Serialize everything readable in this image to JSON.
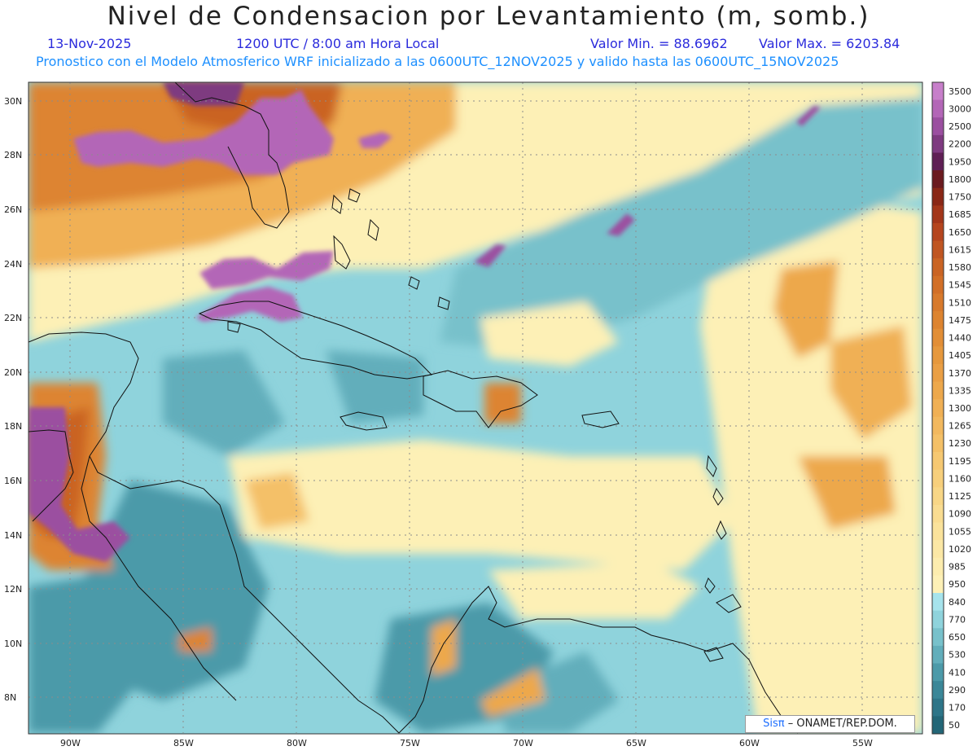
{
  "title": "Nivel de Condensacion por Levantamiento (m, somb.)",
  "date": "13-Nov-2025",
  "time": "1200 UTC / 8:00 am Hora Local",
  "min_label": "Valor Min. = 88.6962",
  "max_label": "Valor Max. = 6203.84",
  "forecast": "Pronostico con el Modelo Atmosferico WRF inicializado a las 0600UTC_12NOV2025 y valido hasta las  0600UTC_15NOV2025",
  "credit": {
    "brand": "Sisπ",
    "org": "– ONAMET/REP.DOM."
  },
  "lat_labels": [
    "30N",
    "28N",
    "26N",
    "24N",
    "22N",
    "20N",
    "18N",
    "16N",
    "14N",
    "12N",
    "10N",
    "8N"
  ],
  "lon_labels": [
    "90W",
    "85W",
    "80W",
    "75W",
    "70W",
    "65W",
    "60W",
    "55W"
  ],
  "colorbar": {
    "labels": [
      "3500",
      "3000",
      "2500",
      "2200",
      "1950",
      "1800",
      "1750",
      "1685",
      "1650",
      "1615",
      "1580",
      "1545",
      "1510",
      "1475",
      "1440",
      "1405",
      "1370",
      "1335",
      "1300",
      "1265",
      "1230",
      "1195",
      "1160",
      "1125",
      "1090",
      "1055",
      "1020",
      "985",
      "950",
      "840",
      "770",
      "650",
      "530",
      "410",
      "290",
      "170",
      "50"
    ],
    "colors": [
      "#c77fca",
      "#b366b7",
      "#9b4fa0",
      "#7e3a80",
      "#5f1f55",
      "#6b1a1f",
      "#8a2716",
      "#a3361a",
      "#b5451e",
      "#c05622",
      "#ca6424",
      "#d26f27",
      "#d87a2c",
      "#dd8430",
      "#e28e36",
      "#e6983d",
      "#ea9f45",
      "#eda84c",
      "#f0b055",
      "#f2b85e",
      "#f4c067",
      "#f6c872",
      "#f7cf7c",
      "#f8d686",
      "#f9dc91",
      "#fae29b",
      "#fbe7a5",
      "#fcecae",
      "#fdf0b6",
      "#a6e3ec",
      "#8fd3dc",
      "#78c1cb",
      "#62aebb",
      "#4c9aa9",
      "#3b8798",
      "#2e7588",
      "#236677"
    ]
  },
  "map_colors": {
    "low": "#5aa8b5",
    "mid_low": "#8fd3dc",
    "mid": "#fdf0b6",
    "high": "#eda84c",
    "very_high": "#c05622",
    "max": "#b366b7"
  }
}
